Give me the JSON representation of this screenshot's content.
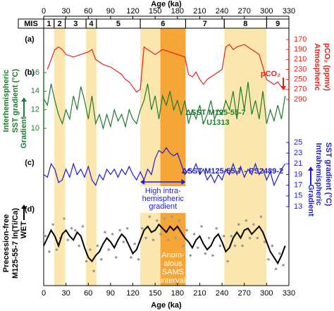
{
  "xlim": [
    0,
    330
  ],
  "top_axis": {
    "label": "Age (ka)",
    "xticks": [
      0,
      30,
      60,
      90,
      120,
      150,
      180,
      210,
      240,
      270,
      300,
      330
    ]
  },
  "bottom_axis": {
    "label": "Age (ka)",
    "xticks": [
      0,
      30,
      60,
      90,
      120,
      150,
      180,
      210,
      240,
      270,
      300,
      330
    ]
  },
  "mis": {
    "label": "MIS",
    "stages": [
      {
        "label": "1",
        "start": 0,
        "end": 14
      },
      {
        "label": "2",
        "start": 14,
        "end": 29
      },
      {
        "label": "3",
        "start": 29,
        "end": 57
      },
      {
        "label": "4",
        "start": 57,
        "end": 71
      },
      {
        "label": "5",
        "start": 71,
        "end": 130
      },
      {
        "label": "6",
        "start": 130,
        "end": 191
      },
      {
        "label": "7",
        "start": 191,
        "end": 243
      },
      {
        "label": "8",
        "start": 243,
        "end": 300
      },
      {
        "label": "9",
        "start": 300,
        "end": 330
      }
    ]
  },
  "bands": [
    {
      "start": 14,
      "end": 29,
      "color": "#fbe7ae"
    },
    {
      "start": 57,
      "end": 71,
      "color": "#fbe7ae"
    },
    {
      "start": 130,
      "end": 157,
      "color": "#fbe7ae"
    },
    {
      "start": 157,
      "end": 191,
      "color": "#f5a637"
    },
    {
      "start": 243,
      "end": 300,
      "color": "#fbe7ae"
    }
  ],
  "sams_label": [
    "Anom-",
    "alous",
    "SAMS",
    "interval"
  ],
  "chart_data": [
    {
      "type": "line",
      "label": "(a)",
      "y_label": [
        "Atmospheric",
        "pCO₂ (ppmv)"
      ],
      "arrow_label": "pCO₂",
      "color": "#e3231b",
      "axis_side": "right",
      "y_inverted": true,
      "ylim": [
        170,
        290
      ],
      "yticks": [
        170,
        190,
        210,
        230,
        250,
        270,
        290
      ],
      "x": [
        5,
        15,
        20,
        25,
        30,
        40,
        50,
        60,
        65,
        70,
        80,
        90,
        100,
        105,
        110,
        115,
        120,
        125,
        130,
        135,
        140,
        150,
        160,
        170,
        180,
        190,
        195,
        200,
        205,
        210,
        215,
        220,
        230,
        240,
        245,
        250,
        255,
        260,
        270,
        280,
        290,
        300,
        305,
        310,
        315,
        320,
        325
      ],
      "values": [
        230,
        190,
        185,
        190,
        200,
        205,
        200,
        195,
        190,
        210,
        220,
        225,
        235,
        240,
        250,
        255,
        265,
        275,
        270,
        185,
        190,
        200,
        190,
        195,
        200,
        205,
        240,
        245,
        235,
        250,
        260,
        250,
        240,
        230,
        185,
        180,
        190,
        185,
        180,
        190,
        200,
        250,
        255,
        260,
        255,
        265,
        270
      ]
    },
    {
      "type": "line",
      "label": "(b)",
      "y_label": [
        "Interhemispheric",
        "SST gradient (°C)"
      ],
      "arrow_label": "Gradient",
      "annotation": [
        "ΔSST M125-55-7",
        "- U1313"
      ],
      "color": "#1f7a2f",
      "axis_side": "left",
      "ylim": [
        10,
        16
      ],
      "yticks": [
        10,
        12,
        14,
        16
      ],
      "x": [
        0,
        5,
        10,
        15,
        20,
        25,
        30,
        35,
        40,
        45,
        50,
        55,
        60,
        65,
        70,
        75,
        80,
        85,
        90,
        95,
        100,
        105,
        110,
        115,
        120,
        125,
        130,
        135,
        140,
        145,
        150,
        155,
        160,
        165,
        170,
        175,
        180,
        185,
        190,
        195,
        200,
        205,
        210,
        215,
        220,
        225,
        230,
        235,
        240,
        245,
        250,
        255,
        260,
        265,
        270,
        275,
        280,
        285,
        290,
        295,
        300,
        305,
        310,
        315,
        320,
        325
      ],
      "values": [
        13.2,
        12.5,
        14.8,
        13,
        11.5,
        10.5,
        12,
        11,
        13.5,
        12,
        14.5,
        13,
        11,
        13.5,
        10.5,
        11.5,
        10,
        11.5,
        10.2,
        12,
        10.8,
        11.5,
        10.2,
        12,
        11,
        10.5,
        12,
        13,
        14.8,
        12,
        13.5,
        11,
        13.5,
        12.5,
        14,
        12,
        13,
        11.5,
        13,
        10.5,
        12,
        11,
        12.5,
        10.5,
        11.5,
        13,
        11,
        12,
        11.5,
        13,
        12,
        14,
        11,
        14.5,
        12,
        15,
        11.5,
        13,
        11,
        14,
        10.5,
        12,
        10.8,
        12.5,
        11,
        13.5
      ]
    },
    {
      "type": "line",
      "label": "(c)",
      "y_label": [
        "Intrahemispheric",
        "SST gradient (°C)"
      ],
      "arrow_label": "Gradient",
      "annotation": [
        "ΔSST M125-55-7 - PS2489-2"
      ],
      "note": [
        "High intra-",
        "hemispheric",
        "gradient"
      ],
      "color": "#1c1cd6",
      "axis_side": "right",
      "ylim": [
        13,
        25
      ],
      "yticks": [
        13,
        15,
        17,
        19,
        21,
        23,
        25
      ],
      "x": [
        0,
        5,
        10,
        15,
        20,
        25,
        30,
        35,
        40,
        45,
        50,
        55,
        60,
        65,
        70,
        75,
        80,
        85,
        90,
        95,
        100,
        105,
        110,
        115,
        120,
        125,
        130,
        135,
        140,
        145,
        150,
        155,
        160,
        165,
        170,
        175,
        180,
        185,
        190,
        195,
        200,
        205,
        210,
        215,
        220,
        225,
        230,
        235,
        240,
        245,
        250,
        255,
        260,
        265,
        270,
        275,
        280,
        285,
        290,
        295,
        300,
        305,
        310,
        315,
        320,
        325
      ],
      "values": [
        19,
        18.5,
        21,
        20,
        17.5,
        18,
        20,
        18.5,
        21,
        19,
        20,
        18.5,
        20.5,
        18,
        17,
        19,
        18,
        20,
        19,
        20,
        18.5,
        20,
        19,
        20.5,
        19,
        18,
        19.5,
        18,
        20,
        19,
        22,
        23.5,
        23,
        24,
        23,
        22.5,
        23,
        21,
        19,
        20,
        19.5,
        21,
        19,
        20,
        18,
        19,
        17.5,
        19,
        18,
        20,
        19,
        21,
        19,
        20.5,
        18.5,
        20,
        19,
        21,
        19,
        20,
        18,
        19.5,
        17,
        18.5,
        20,
        21
      ]
    },
    {
      "type": "line",
      "label": "(d)",
      "y_label": [
        "Precession-free",
        "M125-55-7 ln(Ti/Ca)"
      ],
      "arrow_label": "WET",
      "ylim": [
        -2,
        2
      ],
      "series": [
        {
          "style": "points",
          "color": "#9a9a9a",
          "x": [
            2.5,
            7.5,
            12.5,
            17.5,
            22.5,
            27.5,
            32.5,
            37.5,
            42.5,
            47.5,
            52.5,
            57.5,
            62.5,
            67.5,
            72.5,
            77.5,
            82.5,
            87.5,
            92.5,
            97.5,
            102.5,
            107.5,
            112.5,
            117.5,
            122.5,
            127.5,
            132.5,
            137.5,
            142.5,
            147.5,
            152.5,
            157.5,
            162.5,
            167.5,
            172.5,
            177.5,
            182.5,
            187.5,
            192.5,
            197.5,
            202.5,
            207.5,
            212.5,
            217.5,
            222.5,
            227.5,
            232.5,
            237.5,
            242.5,
            247.5,
            252.5,
            257.5,
            262.5,
            267.5,
            272.5,
            277.5,
            282.5,
            287.5,
            292.5,
            297.5,
            302.5,
            307.5,
            312.5,
            317.5,
            322.5
          ],
          "values": [
            0.3,
            -0.5,
            0.9,
            -0.4,
            0.2,
            1.2,
            0.1,
            0.7,
            0.6,
            -0.2,
            0.8,
            -1.0,
            -0.4,
            -1.5,
            -0.2,
            -0.9,
            0.5,
            -0.4,
            0.4,
            -0.8,
            0.6,
            0.0,
            0.7,
            -0.8,
            -0.1,
            -0.9,
            0.7,
            0.2,
            1.3,
            0.1,
            1.1,
            0.4,
            1.2,
            0.1,
            1.3,
            0.2,
            1.1,
            -0.2,
            0.6,
            -0.7,
            0.4,
            -0.3,
            0.8,
            -0.6,
            0.2,
            -0.7,
            0.7,
            -0.2,
            0.3,
            -1.0,
            0.3,
            -0.2,
            0.9,
            -0.2,
            1.1,
            0.2,
            0.9,
            0.2,
            1.3,
            0.0,
            -0.9,
            -0.2,
            -1.4,
            -0.6,
            -1.2
          ]
        },
        {
          "style": "line",
          "color": "#000000",
          "x": [
            0,
            5,
            10,
            15,
            20,
            25,
            30,
            35,
            40,
            45,
            50,
            55,
            60,
            65,
            70,
            75,
            80,
            85,
            90,
            95,
            100,
            105,
            110,
            115,
            120,
            125,
            130,
            135,
            140,
            145,
            150,
            155,
            160,
            165,
            170,
            175,
            180,
            185,
            190,
            195,
            200,
            205,
            210,
            215,
            220,
            225,
            230,
            235,
            240,
            245,
            250,
            255,
            260,
            265,
            270,
            275,
            280,
            285,
            290,
            295,
            300,
            305,
            310,
            315,
            320,
            325
          ],
          "values": [
            -0.2,
            0.2,
            0.6,
            0.3,
            -0.2,
            0.4,
            0.6,
            0.3,
            0.1,
            0.5,
            0.3,
            -0.3,
            -0.8,
            -1.0,
            -0.7,
            -0.5,
            -0.1,
            0.2,
            0.0,
            -0.3,
            0.1,
            0.4,
            0.2,
            -0.2,
            -0.6,
            -0.4,
            0.1,
            0.6,
            0.8,
            0.5,
            0.6,
            0.9,
            0.7,
            0.5,
            0.8,
            0.6,
            0.8,
            0.5,
            0.2,
            0.0,
            -0.3,
            0.1,
            0.3,
            -0.1,
            -0.4,
            -0.2,
            0.2,
            0.4,
            0.0,
            -0.5,
            -0.3,
            0.2,
            0.5,
            0.2,
            0.6,
            0.7,
            0.4,
            0.6,
            0.8,
            0.5,
            0.0,
            -0.5,
            -0.8,
            -1.1,
            -0.7,
            -0.2
          ]
        }
      ]
    }
  ]
}
